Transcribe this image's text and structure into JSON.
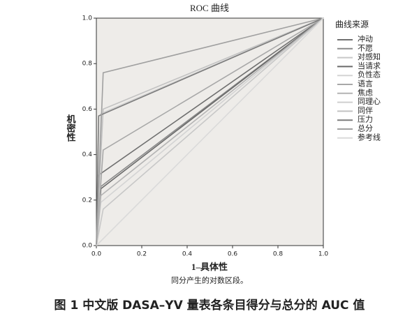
{
  "chart_data": {
    "type": "line",
    "title": "ROC 曲线",
    "x_label": "1–具体性",
    "y_label": "机密性",
    "subtitle": "同分产生的对数区段。",
    "legend_title": "曲线来源",
    "caption": "图 1  中文版 DASA–YV 量表各条目得分与总分的 AUC 值",
    "xlim": [
      0,
      1
    ],
    "ylim": [
      0,
      1
    ],
    "xticks": [
      {
        "value": 0,
        "label": "0.0"
      },
      0.2,
      0.4,
      0.6,
      0.8,
      {
        "value": 1,
        "label": "1.0"
      }
    ],
    "yticks": [
      {
        "value": 0,
        "label": "0.0"
      },
      0.2,
      0.4,
      0.6,
      0.8,
      {
        "value": 1,
        "label": "1.0"
      }
    ],
    "legend": "right",
    "series": [
      {
        "name": "冲动",
        "color": "#707070",
        "x": [
          0,
          0.01,
          1
        ],
        "values": [
          0,
          0.31,
          1
        ]
      },
      {
        "name": "不愿",
        "color": "#8a8a8a",
        "x": [
          0,
          0.02,
          1
        ],
        "values": [
          0,
          0.26,
          1
        ]
      },
      {
        "name": "对感知",
        "color": "#c8c8c8",
        "x": [
          0,
          0.03,
          1
        ],
        "values": [
          0,
          0.16,
          1
        ]
      },
      {
        "name": "当请求",
        "color": "#6a6a6a",
        "x": [
          0,
          0.02,
          1
        ],
        "values": [
          0,
          0.25,
          1
        ]
      },
      {
        "name": "负性态",
        "color": "#d4d4d4",
        "x": [
          0,
          0.02,
          1
        ],
        "values": [
          0,
          0.19,
          1
        ]
      },
      {
        "name": "语言",
        "color": "#a8a8a8",
        "x": [
          0,
          0.03,
          1
        ],
        "values": [
          0,
          0.42,
          1
        ]
      },
      {
        "name": "焦虑",
        "color": "#b4b4b4",
        "x": [
          0,
          0.02,
          1
        ],
        "values": [
          0,
          0.22,
          1
        ]
      },
      {
        "name": "同理心",
        "color": "#cfcfcf",
        "x": [
          0,
          0.02,
          1
        ],
        "values": [
          0,
          0.58,
          1
        ]
      },
      {
        "name": "同伴",
        "color": "#c2c2c2",
        "x": [
          0,
          0.03,
          1
        ],
        "values": [
          0,
          0.6,
          1
        ]
      },
      {
        "name": "压力",
        "color": "#7c7c7c",
        "x": [
          0,
          0.01,
          1
        ],
        "values": [
          0,
          0.57,
          1
        ]
      },
      {
        "name": "总分",
        "color": "#a0a0a0",
        "x": [
          0,
          0.03,
          1
        ],
        "values": [
          0,
          0.76,
          1
        ]
      },
      {
        "name": "参考线",
        "color": "#dadada",
        "x": [
          0,
          1
        ],
        "values": [
          0,
          1
        ]
      }
    ]
  }
}
